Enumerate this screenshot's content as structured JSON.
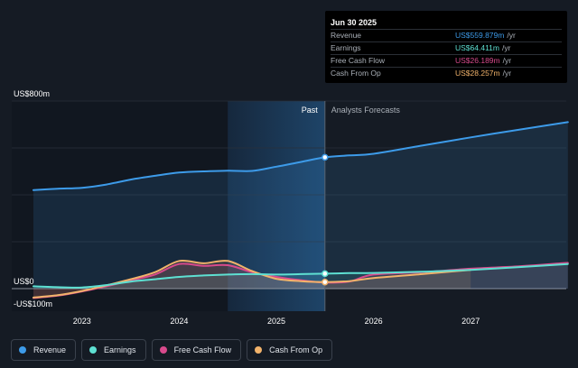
{
  "colors": {
    "background": "#151b24",
    "revenue": "#3d9be9",
    "earnings": "#5ee0d2",
    "free_cash_flow": "#d84a8c",
    "cash_from_op": "#f2b36b",
    "forecast_shade": "#1c3a5a"
  },
  "tooltip": {
    "date": "Jun 30 2025",
    "rows": [
      {
        "label": "Revenue",
        "value": "US$559.879m",
        "unit": "/yr",
        "color": "#3d9be9"
      },
      {
        "label": "Earnings",
        "value": "US$64.411m",
        "unit": "/yr",
        "color": "#5ee0d2"
      },
      {
        "label": "Free Cash Flow",
        "value": "US$26.189m",
        "unit": "/yr",
        "color": "#d84a8c"
      },
      {
        "label": "Cash From Op",
        "value": "US$28.257m",
        "unit": "/yr",
        "color": "#f2b36b"
      }
    ]
  },
  "legend": [
    {
      "label": "Revenue",
      "color": "#3d9be9"
    },
    {
      "label": "Earnings",
      "color": "#5ee0d2"
    },
    {
      "label": "Free Cash Flow",
      "color": "#d84a8c"
    },
    {
      "label": "Cash From Op",
      "color": "#f2b36b"
    }
  ],
  "chart_data": {
    "type": "line",
    "title": "",
    "xlabel": "",
    "ylabel": "",
    "y_top_label": "US$800m",
    "y_zero_label": "US$0",
    "y_bottom_label": "-US$100m",
    "ylim": [
      -100,
      800
    ],
    "xlim": [
      2022.5,
      2028.0
    ],
    "x_ticks": [
      2023,
      2024,
      2025,
      2026,
      2027
    ],
    "x_tick_labels": [
      "2023",
      "2024",
      "2025",
      "2026",
      "2027"
    ],
    "past_label": "Past",
    "forecast_label": "Analysts Forecasts",
    "past_start": 2024.5,
    "divider_x": 2025.5,
    "series": [
      {
        "name": "Revenue",
        "key": "revenue",
        "x": [
          2022.5,
          2022.75,
          2023.0,
          2023.25,
          2023.5,
          2023.75,
          2024.0,
          2024.25,
          2024.5,
          2024.75,
          2025.0,
          2025.25,
          2025.5,
          2025.75,
          2026.0,
          2026.5,
          2027.0,
          2027.5,
          2028.0
        ],
        "y": [
          420,
          426,
          430,
          444,
          465,
          481,
          495,
          500,
          503,
          502,
          520,
          540,
          560,
          568,
          575,
          610,
          645,
          678,
          710
        ]
      },
      {
        "name": "Earnings",
        "key": "earnings",
        "x": [
          2022.5,
          2022.75,
          2023.0,
          2023.25,
          2023.5,
          2023.75,
          2024.0,
          2024.25,
          2024.5,
          2024.75,
          2025.0,
          2025.25,
          2025.5,
          2025.75,
          2026.0,
          2026.5,
          2027.0,
          2027.5,
          2028.0
        ],
        "y": [
          10,
          6,
          5,
          15,
          30,
          40,
          50,
          56,
          60,
          62,
          60,
          62,
          64,
          66,
          67,
          72,
          80,
          92,
          105
        ]
      },
      {
        "name": "Free Cash Flow",
        "key": "free_cash_flow",
        "x": [
          2022.5,
          2022.75,
          2023.0,
          2023.25,
          2023.5,
          2023.75,
          2024.0,
          2024.25,
          2024.5,
          2024.75,
          2025.0,
          2025.25,
          2025.5,
          2025.75,
          2026.0,
          2026.5,
          2027.0,
          2027.5,
          2028.0
        ],
        "y": [
          -40,
          -30,
          -12,
          10,
          35,
          60,
          105,
          97,
          100,
          70,
          50,
          36,
          26,
          30,
          60,
          70,
          85,
          95,
          110
        ]
      },
      {
        "name": "Cash From Op",
        "key": "cash_from_op",
        "x": [
          2022.5,
          2022.75,
          2023.0,
          2023.25,
          2023.5,
          2023.75,
          2024.0,
          2024.25,
          2024.5,
          2024.75,
          2025.0,
          2025.25,
          2025.5,
          2025.75,
          2026.0,
          2026.5,
          2027.0
        ],
        "y": [
          -38,
          -28,
          -10,
          14,
          40,
          70,
          118,
          108,
          118,
          75,
          42,
          32,
          28,
          32,
          45,
          62,
          80
        ]
      }
    ]
  }
}
